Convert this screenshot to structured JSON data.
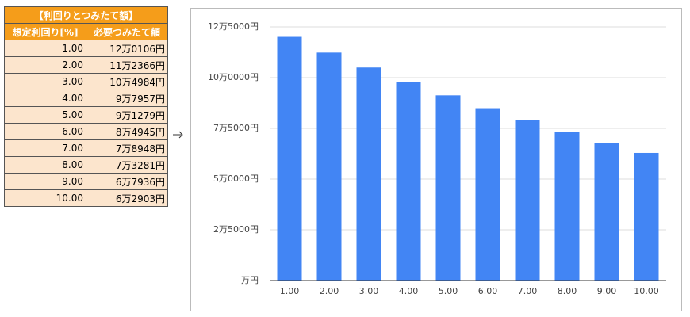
{
  "table": {
    "title": "【利回りとつみたて額】",
    "header": [
      "想定利回り[%]",
      "必要つみたて額"
    ],
    "rows": [
      [
        "1.00",
        "12万0106円"
      ],
      [
        "2.00",
        "11万2366円"
      ],
      [
        "3.00",
        "10万4984円"
      ],
      [
        "4.00",
        "9万7957円"
      ],
      [
        "5.00",
        "9万1279円"
      ],
      [
        "6.00",
        "8万4945円"
      ],
      [
        "7.00",
        "7万8948円"
      ],
      [
        "8.00",
        "7万3281円"
      ],
      [
        "9.00",
        "6万7936円"
      ],
      [
        "10.00",
        "6万2903円"
      ]
    ]
  },
  "chart_data": {
    "type": "bar",
    "categories": [
      "1.00",
      "2.00",
      "3.00",
      "4.00",
      "5.00",
      "6.00",
      "7.00",
      "8.00",
      "9.00",
      "10.00"
    ],
    "values": [
      120106,
      112366,
      104984,
      97957,
      91279,
      84945,
      78948,
      73281,
      67936,
      62903
    ],
    "color": "#4285f4",
    "ylim": [
      0,
      125000
    ],
    "yticks": [
      {
        "value": 0,
        "label": "万円"
      },
      {
        "value": 25000,
        "label": "2万5000円"
      },
      {
        "value": 50000,
        "label": "5万0000円"
      },
      {
        "value": 75000,
        "label": "7万5000円"
      },
      {
        "value": 100000,
        "label": "10万0000円"
      },
      {
        "value": 125000,
        "label": "12万5000円"
      }
    ],
    "grid": true
  }
}
